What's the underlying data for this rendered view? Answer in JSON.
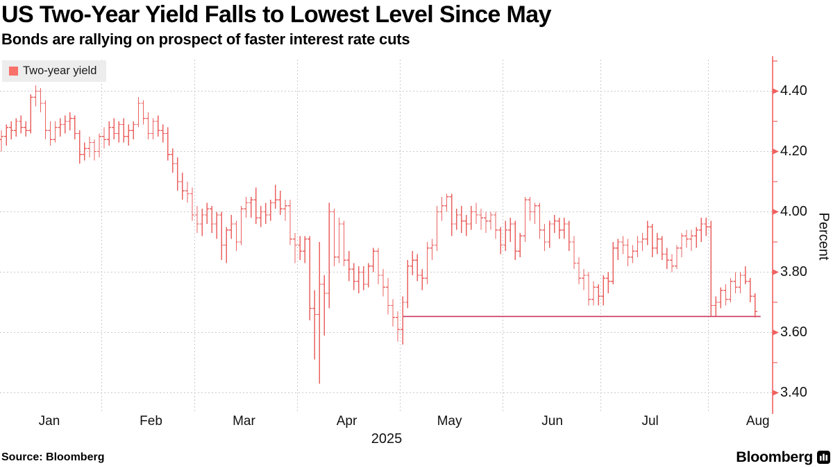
{
  "header": {
    "title": "US Two-Year Yield Falls to Lowest Level Since May",
    "subtitle": "Bonds are rallying on prospect of faster interest rate cuts"
  },
  "legend": {
    "label": "Two-year yield",
    "swatch_color": "#f8716a"
  },
  "source": "Source: Bloomberg",
  "branding": {
    "logo_text": "Bloomberg",
    "logo_icon": "bloomberg-terminal-icon"
  },
  "colors": {
    "bar": "#e9605f",
    "axis": "#f0615e",
    "reference_line": "#c9335b",
    "grid": "#c9c9c9",
    "legend_bg": "#ededed",
    "text": "#000000"
  },
  "chart_data": {
    "type": "bar",
    "subtype": "ohlc-time-series",
    "title": "US Two-Year Yield Falls to Lowest Level Since May",
    "subtitle": "Bonds are rallying on prospect of faster interest rate cuts",
    "series_name": "Two-year yield",
    "xlabel": "2025",
    "ylabel": "Percent",
    "x_axis": {
      "months": [
        "Jan",
        "Feb",
        "Mar",
        "Apr",
        "May",
        "Jun",
        "Jul",
        "Aug"
      ],
      "bars_per_month": [
        21,
        19,
        21,
        21,
        21,
        20,
        22,
        10
      ],
      "year_label": "2025"
    },
    "y_axis": {
      "label": "Percent",
      "major_ticks": [
        4.4,
        4.2,
        4.0,
        3.8,
        3.6,
        3.4
      ],
      "minor_ticks": [
        4.5,
        4.3,
        4.1,
        3.9,
        3.7,
        3.5
      ],
      "range": [
        3.34,
        4.51
      ],
      "grid": true
    },
    "reference_line": {
      "value": 3.653,
      "starts_at_date": "2025-05-01",
      "start_bar_index": 82
    },
    "dates": [
      "2025-01-02",
      "2025-01-03",
      "2025-01-06",
      "2025-01-07",
      "2025-01-08",
      "2025-01-09",
      "2025-01-10",
      "2025-01-13",
      "2025-01-14",
      "2025-01-15",
      "2025-01-16",
      "2025-01-17",
      "2025-01-21",
      "2025-01-22",
      "2025-01-23",
      "2025-01-24",
      "2025-01-27",
      "2025-01-28",
      "2025-01-29",
      "2025-01-30",
      "2025-01-31",
      "2025-02-03",
      "2025-02-04",
      "2025-02-05",
      "2025-02-06",
      "2025-02-07",
      "2025-02-10",
      "2025-02-11",
      "2025-02-12",
      "2025-02-13",
      "2025-02-14",
      "2025-02-18",
      "2025-02-19",
      "2025-02-20",
      "2025-02-21",
      "2025-02-24",
      "2025-02-25",
      "2025-02-26",
      "2025-02-27",
      "2025-02-28",
      "2025-03-03",
      "2025-03-04",
      "2025-03-05",
      "2025-03-06",
      "2025-03-07",
      "2025-03-10",
      "2025-03-11",
      "2025-03-12",
      "2025-03-13",
      "2025-03-14",
      "2025-03-17",
      "2025-03-18",
      "2025-03-19",
      "2025-03-20",
      "2025-03-21",
      "2025-03-24",
      "2025-03-25",
      "2025-03-26",
      "2025-03-27",
      "2025-03-28",
      "2025-03-31",
      "2025-04-01",
      "2025-04-02",
      "2025-04-03",
      "2025-04-04",
      "2025-04-07",
      "2025-04-08",
      "2025-04-09",
      "2025-04-10",
      "2025-04-11",
      "2025-04-14",
      "2025-04-15",
      "2025-04-16",
      "2025-04-17",
      "2025-04-21",
      "2025-04-22",
      "2025-04-23",
      "2025-04-24",
      "2025-04-25",
      "2025-04-28",
      "2025-04-29",
      "2025-04-30",
      "2025-05-01",
      "2025-05-02",
      "2025-05-05",
      "2025-05-06",
      "2025-05-07",
      "2025-05-08",
      "2025-05-09",
      "2025-05-12",
      "2025-05-13",
      "2025-05-14",
      "2025-05-15",
      "2025-05-16",
      "2025-05-19",
      "2025-05-20",
      "2025-05-21",
      "2025-05-22",
      "2025-05-23",
      "2025-05-27",
      "2025-05-28",
      "2025-05-29",
      "2025-05-30",
      "2025-06-02",
      "2025-06-03",
      "2025-06-04",
      "2025-06-05",
      "2025-06-06",
      "2025-06-09",
      "2025-06-10",
      "2025-06-11",
      "2025-06-12",
      "2025-06-13",
      "2025-06-16",
      "2025-06-17",
      "2025-06-18",
      "2025-06-20",
      "2025-06-23",
      "2025-06-24",
      "2025-06-25",
      "2025-06-26",
      "2025-06-27",
      "2025-06-30",
      "2025-07-01",
      "2025-07-02",
      "2025-07-03",
      "2025-07-07",
      "2025-07-08",
      "2025-07-09",
      "2025-07-10",
      "2025-07-11",
      "2025-07-14",
      "2025-07-15",
      "2025-07-16",
      "2025-07-17",
      "2025-07-18",
      "2025-07-21",
      "2025-07-22",
      "2025-07-23",
      "2025-07-24",
      "2025-07-25",
      "2025-07-28",
      "2025-07-29",
      "2025-07-30",
      "2025-07-31",
      "2025-08-01",
      "2025-08-04",
      "2025-08-05",
      "2025-08-06",
      "2025-08-07",
      "2025-08-08",
      "2025-08-11",
      "2025-08-12",
      "2025-08-13",
      "2025-08-14"
    ],
    "bars_ohlc": [
      [
        4.24,
        4.27,
        4.2,
        4.25
      ],
      [
        4.25,
        4.29,
        4.22,
        4.28
      ],
      [
        4.28,
        4.3,
        4.24,
        4.27
      ],
      [
        4.27,
        4.31,
        4.25,
        4.3
      ],
      [
        4.3,
        4.32,
        4.26,
        4.28
      ],
      [
        4.28,
        4.3,
        4.25,
        4.27
      ],
      [
        4.27,
        4.39,
        4.26,
        4.38
      ],
      [
        4.38,
        4.42,
        4.35,
        4.4
      ],
      [
        4.4,
        4.41,
        4.33,
        4.36
      ],
      [
        4.36,
        4.37,
        4.24,
        4.27
      ],
      [
        4.27,
        4.3,
        4.22,
        4.24
      ],
      [
        4.24,
        4.3,
        4.23,
        4.28
      ],
      [
        4.28,
        4.31,
        4.25,
        4.29
      ],
      [
        4.29,
        4.32,
        4.26,
        4.3
      ],
      [
        4.3,
        4.33,
        4.27,
        4.31
      ],
      [
        4.31,
        4.32,
        4.24,
        4.26
      ],
      [
        4.26,
        4.27,
        4.16,
        4.19
      ],
      [
        4.19,
        4.23,
        4.17,
        4.21
      ],
      [
        4.21,
        4.25,
        4.18,
        4.23
      ],
      [
        4.23,
        4.24,
        4.17,
        4.2
      ],
      [
        4.2,
        4.26,
        4.18,
        4.25
      ],
      [
        4.25,
        4.28,
        4.21,
        4.24
      ],
      [
        4.24,
        4.3,
        4.22,
        4.28
      ],
      [
        4.28,
        4.31,
        4.24,
        4.26
      ],
      [
        4.26,
        4.3,
        4.23,
        4.29
      ],
      [
        4.29,
        4.31,
        4.23,
        4.25
      ],
      [
        4.25,
        4.29,
        4.22,
        4.27
      ],
      [
        4.27,
        4.3,
        4.24,
        4.29
      ],
      [
        4.29,
        4.38,
        4.28,
        4.36
      ],
      [
        4.36,
        4.37,
        4.29,
        4.31
      ],
      [
        4.31,
        4.33,
        4.24,
        4.26
      ],
      [
        4.26,
        4.31,
        4.24,
        4.3
      ],
      [
        4.3,
        4.32,
        4.25,
        4.27
      ],
      [
        4.27,
        4.29,
        4.23,
        4.26
      ],
      [
        4.26,
        4.28,
        4.17,
        4.19
      ],
      [
        4.19,
        4.21,
        4.13,
        4.16
      ],
      [
        4.16,
        4.18,
        4.07,
        4.1
      ],
      [
        4.1,
        4.13,
        4.04,
        4.07
      ],
      [
        4.07,
        4.1,
        4.03,
        4.06
      ],
      [
        4.06,
        4.08,
        3.97,
        3.99
      ],
      [
        3.99,
        4.02,
        3.93,
        3.96
      ],
      [
        3.96,
        4.01,
        3.92,
        3.99
      ],
      [
        3.99,
        4.03,
        3.96,
        4.01
      ],
      [
        4.01,
        4.02,
        3.93,
        3.96
      ],
      [
        3.96,
        4.0,
        3.91,
        3.99
      ],
      [
        3.99,
        4.0,
        3.84,
        3.89
      ],
      [
        3.89,
        3.95,
        3.83,
        3.94
      ],
      [
        3.94,
        3.99,
        3.91,
        3.96
      ],
      [
        3.96,
        3.97,
        3.87,
        3.9
      ],
      [
        3.9,
        4.02,
        3.89,
        4.01
      ],
      [
        4.01,
        4.05,
        3.98,
        4.03
      ],
      [
        4.03,
        4.05,
        3.98,
        4.04
      ],
      [
        4.04,
        4.08,
        3.96,
        3.98
      ],
      [
        3.98,
        4.02,
        3.95,
        4.0
      ],
      [
        4.0,
        4.03,
        3.96,
        3.99
      ],
      [
        3.99,
        4.04,
        3.97,
        4.03
      ],
      [
        4.03,
        4.09,
        4.01,
        4.04
      ],
      [
        4.04,
        4.07,
        3.99,
        4.01
      ],
      [
        4.01,
        4.04,
        3.97,
        4.02
      ],
      [
        4.02,
        4.04,
        3.89,
        3.91
      ],
      [
        3.91,
        3.93,
        3.83,
        3.89
      ],
      [
        3.89,
        3.92,
        3.84,
        3.87
      ],
      [
        3.87,
        3.92,
        3.83,
        3.91
      ],
      [
        3.91,
        3.92,
        3.64,
        3.68
      ],
      [
        3.68,
        3.74,
        3.51,
        3.66
      ],
      [
        3.66,
        3.9,
        3.43,
        3.76
      ],
      [
        3.76,
        3.79,
        3.59,
        3.73
      ],
      [
        3.73,
        4.03,
        3.68,
        4.0
      ],
      [
        4.0,
        4.01,
        3.82,
        3.85
      ],
      [
        3.85,
        3.98,
        3.83,
        3.96
      ],
      [
        3.96,
        3.97,
        3.82,
        3.84
      ],
      [
        3.84,
        3.87,
        3.77,
        3.81
      ],
      [
        3.81,
        3.83,
        3.74,
        3.77
      ],
      [
        3.77,
        3.82,
        3.73,
        3.8
      ],
      [
        3.8,
        3.82,
        3.74,
        3.76
      ],
      [
        3.76,
        3.83,
        3.75,
        3.82
      ],
      [
        3.82,
        3.88,
        3.8,
        3.87
      ],
      [
        3.87,
        3.88,
        3.76,
        3.79
      ],
      [
        3.79,
        3.81,
        3.72,
        3.75
      ],
      [
        3.75,
        3.78,
        3.66,
        3.69
      ],
      [
        3.69,
        3.71,
        3.62,
        3.65
      ],
      [
        3.65,
        3.67,
        3.57,
        3.61
      ],
      [
        3.61,
        3.72,
        3.56,
        3.7
      ],
      [
        3.7,
        3.84,
        3.68,
        3.82
      ],
      [
        3.82,
        3.87,
        3.79,
        3.84
      ],
      [
        3.84,
        3.86,
        3.77,
        3.79
      ],
      [
        3.79,
        3.81,
        3.74,
        3.78
      ],
      [
        3.78,
        3.9,
        3.76,
        3.88
      ],
      [
        3.88,
        3.91,
        3.84,
        3.89
      ],
      [
        3.89,
        4.02,
        3.87,
        4.0
      ],
      [
        4.0,
        4.05,
        3.97,
        4.02
      ],
      [
        4.02,
        4.06,
        4.0,
        4.05
      ],
      [
        4.05,
        4.06,
        3.92,
        3.96
      ],
      [
        3.96,
        4.01,
        3.94,
        3.99
      ],
      [
        3.99,
        4.02,
        3.93,
        3.97
      ],
      [
        3.97,
        3.99,
        3.92,
        3.96
      ],
      [
        3.96,
        4.02,
        3.94,
        4.0
      ],
      [
        4.0,
        4.03,
        3.96,
        3.99
      ],
      [
        3.99,
        4.01,
        3.94,
        3.98
      ],
      [
        3.98,
        4.0,
        3.93,
        3.97
      ],
      [
        3.97,
        4.0,
        3.94,
        3.99
      ],
      [
        3.99,
        4.0,
        3.91,
        3.94
      ],
      [
        3.94,
        3.95,
        3.86,
        3.89
      ],
      [
        3.89,
        3.97,
        3.87,
        3.94
      ],
      [
        3.94,
        3.98,
        3.9,
        3.96
      ],
      [
        3.96,
        3.97,
        3.84,
        3.87
      ],
      [
        3.87,
        3.93,
        3.85,
        3.92
      ],
      [
        3.92,
        4.05,
        3.9,
        4.04
      ],
      [
        4.04,
        4.05,
        3.97,
        4.0
      ],
      [
        4.0,
        4.03,
        3.96,
        4.02
      ],
      [
        4.02,
        4.03,
        3.91,
        3.94
      ],
      [
        3.94,
        3.96,
        3.87,
        3.9
      ],
      [
        3.9,
        3.97,
        3.88,
        3.96
      ],
      [
        3.96,
        3.99,
        3.93,
        3.97
      ],
      [
        3.97,
        3.98,
        3.91,
        3.94
      ],
      [
        3.94,
        3.98,
        3.91,
        3.96
      ],
      [
        3.96,
        3.97,
        3.87,
        3.9
      ],
      [
        3.9,
        3.92,
        3.81,
        3.83
      ],
      [
        3.83,
        3.85,
        3.76,
        3.78
      ],
      [
        3.78,
        3.81,
        3.74,
        3.79
      ],
      [
        3.79,
        3.8,
        3.69,
        3.71
      ],
      [
        3.71,
        3.77,
        3.69,
        3.75
      ],
      [
        3.75,
        3.76,
        3.69,
        3.72
      ],
      [
        3.72,
        3.79,
        3.69,
        3.78
      ],
      [
        3.78,
        3.8,
        3.73,
        3.77
      ],
      [
        3.77,
        3.9,
        3.76,
        3.88
      ],
      [
        3.88,
        3.91,
        3.84,
        3.9
      ],
      [
        3.9,
        3.92,
        3.86,
        3.89
      ],
      [
        3.89,
        3.91,
        3.82,
        3.85
      ],
      [
        3.85,
        3.89,
        3.83,
        3.87
      ],
      [
        3.87,
        3.92,
        3.85,
        3.9
      ],
      [
        3.9,
        3.93,
        3.87,
        3.91
      ],
      [
        3.91,
        3.97,
        3.89,
        3.95
      ],
      [
        3.95,
        3.96,
        3.85,
        3.88
      ],
      [
        3.88,
        3.93,
        3.86,
        3.91
      ],
      [
        3.91,
        3.92,
        3.84,
        3.86
      ],
      [
        3.86,
        3.88,
        3.81,
        3.84
      ],
      [
        3.84,
        3.86,
        3.8,
        3.82
      ],
      [
        3.82,
        3.89,
        3.81,
        3.88
      ],
      [
        3.88,
        3.93,
        3.85,
        3.92
      ],
      [
        3.92,
        3.94,
        3.88,
        3.91
      ],
      [
        3.91,
        3.94,
        3.87,
        3.92
      ],
      [
        3.92,
        3.95,
        3.88,
        3.94
      ],
      [
        3.94,
        3.98,
        3.9,
        3.96
      ],
      [
        3.96,
        3.98,
        3.92,
        3.95
      ],
      [
        3.95,
        3.97,
        3.655,
        3.69
      ],
      [
        3.69,
        3.72,
        3.655,
        3.7
      ],
      [
        3.7,
        3.75,
        3.68,
        3.74
      ],
      [
        3.74,
        3.76,
        3.69,
        3.71
      ],
      [
        3.71,
        3.78,
        3.7,
        3.77
      ],
      [
        3.77,
        3.8,
        3.73,
        3.75
      ],
      [
        3.75,
        3.8,
        3.73,
        3.79
      ],
      [
        3.79,
        3.82,
        3.76,
        3.77
      ],
      [
        3.77,
        3.78,
        3.7,
        3.72
      ],
      [
        3.72,
        3.73,
        3.65,
        3.67
      ]
    ]
  }
}
